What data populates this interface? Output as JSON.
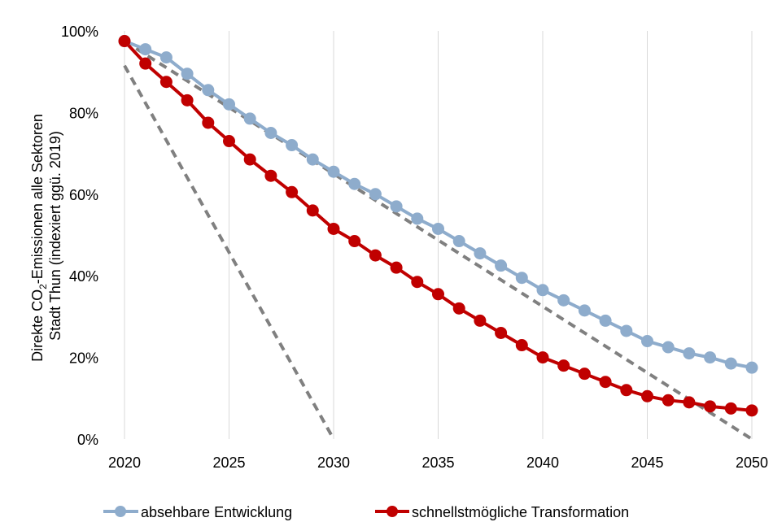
{
  "chart_data": {
    "type": "line",
    "title": "",
    "xlabel": "",
    "ylabel": "Direkte CO₂-Emissionen alle Sektoren Stadt Thun (indexiert ggü. 2019)",
    "ylabel_lines": [
      "Direkte CO",
      "2",
      "-Emissionen alle Sektoren",
      "Stadt Thun (indexiert ggü. 2019)"
    ],
    "xlim": [
      2020,
      2050
    ],
    "ylim": [
      0,
      100
    ],
    "x_ticks": [
      2020,
      2025,
      2030,
      2035,
      2040,
      2045,
      2050
    ],
    "x_tick_labels": [
      "2020",
      "2025",
      "2030",
      "2035",
      "2040",
      "2045",
      "2050"
    ],
    "y_ticks": [
      0,
      20,
      40,
      60,
      80,
      100
    ],
    "y_tick_labels": [
      "0%",
      "20%",
      "40%",
      "60%",
      "80%",
      "100%"
    ],
    "grid": "vertical",
    "legend_position": "bottom",
    "x": [
      2020,
      2021,
      2022,
      2023,
      2024,
      2025,
      2026,
      2027,
      2028,
      2029,
      2030,
      2031,
      2032,
      2033,
      2034,
      2035,
      2036,
      2037,
      2038,
      2039,
      2040,
      2041,
      2042,
      2043,
      2044,
      2045,
      2046,
      2047,
      2048,
      2049,
      2050
    ],
    "series": [
      {
        "name": "absehbare Entwicklung",
        "color": "#8eaccc",
        "marker": "circle",
        "values": [
          97.5,
          95.5,
          93.5,
          89.5,
          85.5,
          82,
          78.5,
          75,
          72,
          68.5,
          65.5,
          62.5,
          60,
          57,
          54,
          51.5,
          48.5,
          45.5,
          42.5,
          39.5,
          36.5,
          34,
          31.5,
          29,
          26.5,
          24,
          22.5,
          21,
          20,
          18.5,
          17.5
        ]
      },
      {
        "name": "schnellstmögliche Transformation",
        "color": "#c00000",
        "marker": "circle",
        "values": [
          97.5,
          92,
          87.5,
          83,
          77.5,
          73,
          68.5,
          64.5,
          60.5,
          56,
          51.5,
          48.5,
          45,
          42,
          38.5,
          35.5,
          32,
          29,
          26,
          23,
          20,
          18,
          16,
          14,
          12,
          10.5,
          9.5,
          9,
          8,
          7.5,
          7
        ]
      }
    ],
    "reference_lines": [
      {
        "color": "#808080",
        "style": "dashed",
        "points": [
          [
            2020,
            91.5
          ],
          [
            2030,
            0
          ]
        ]
      },
      {
        "color": "#808080",
        "style": "dashed",
        "points": [
          [
            2020,
            97.5
          ],
          [
            2050,
            0
          ]
        ]
      }
    ]
  }
}
